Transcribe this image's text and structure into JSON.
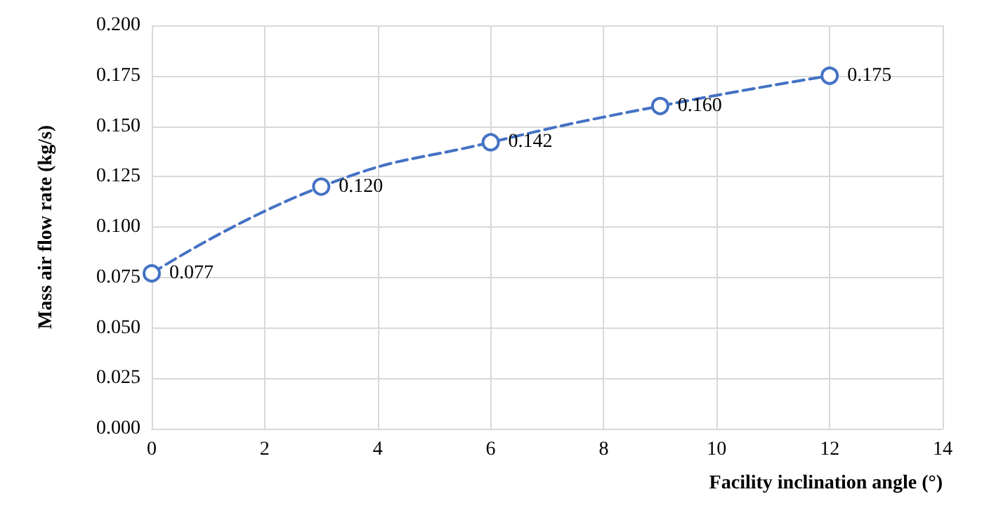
{
  "chart_data": {
    "type": "line",
    "xlabel": "Facility inclination angle (°)",
    "ylabel": "Mass air flow rate (kg/s)",
    "x": [
      0,
      3,
      6,
      9,
      12
    ],
    "series": [
      {
        "color": "#4472c4",
        "values": [
          0.077,
          0.12,
          0.142,
          0.16,
          0.175
        ],
        "value_labels": [
          "0.077",
          "0.120",
          "0.142",
          "0.160",
          "0.175"
        ]
      }
    ],
    "xlim": [
      0,
      14
    ],
    "xticks": [
      0,
      2,
      4,
      6,
      8,
      10,
      12,
      14
    ],
    "ylim": [
      0,
      0.2
    ],
    "yticks": [
      {
        "value": 0,
        "label": "0.000"
      },
      0.025,
      {
        "value": 0.05,
        "label": "0.050"
      },
      0.075,
      {
        "value": 0.1,
        "label": "0.100"
      },
      0.125,
      {
        "value": 0.15,
        "label": "0.150"
      },
      0.175,
      {
        "value": 0.2,
        "label": "0.200"
      }
    ],
    "grid": true,
    "marker": "circle",
    "line_style": "dashed"
  }
}
